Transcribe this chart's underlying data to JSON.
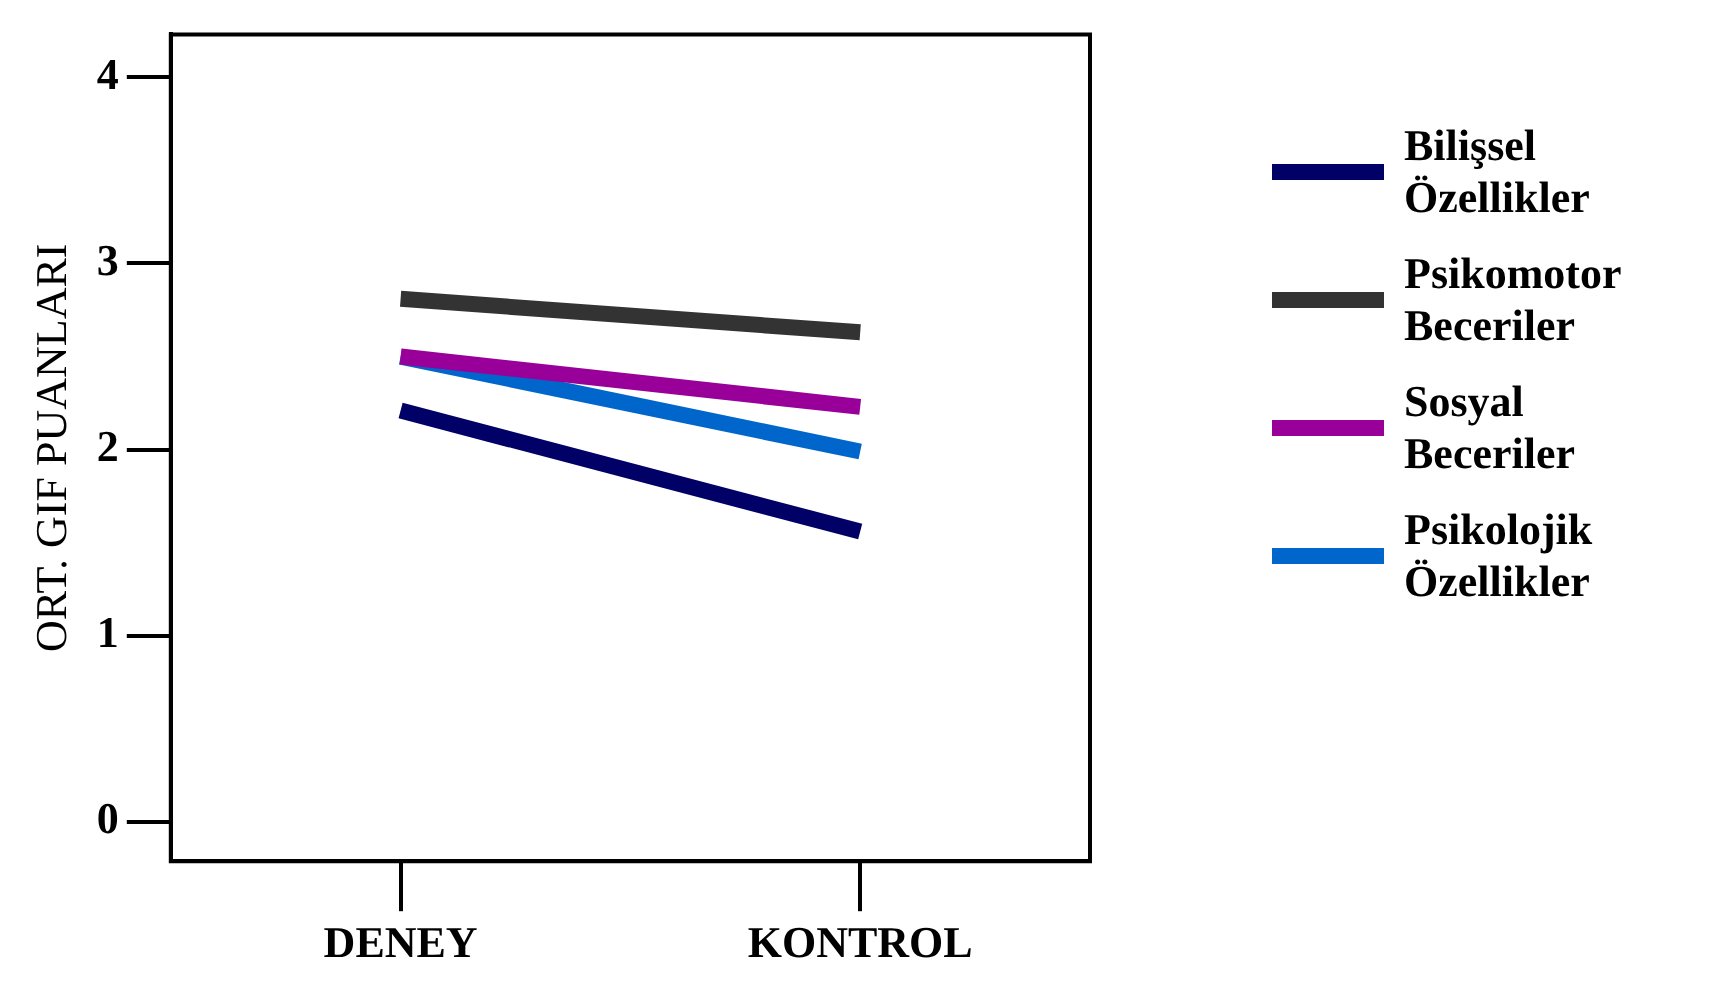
{
  "chart_data": {
    "type": "line",
    "ylabel": "ORT. GIF PUANLARI",
    "categories": [
      "DENEY",
      "KONTROL"
    ],
    "series": [
      {
        "name": "Bilişsel Özellikler",
        "color": "#000066",
        "values": [
          2.21,
          1.56
        ]
      },
      {
        "name": "Psikomotor Beceriler",
        "color": "#333333",
        "values": [
          2.81,
          2.63
        ]
      },
      {
        "name": "Sosyal Beceriler",
        "color": "#990099",
        "values": [
          2.5,
          2.23
        ]
      },
      {
        "name": "Psikolojik Özellikler",
        "color": "#0066cc",
        "values": [
          2.5,
          1.99
        ]
      }
    ],
    "ylim": [
      -0.21,
      4.23
    ],
    "yticks": [
      0,
      1,
      2,
      3,
      4
    ],
    "grid": false,
    "legend": "right",
    "marker": "none",
    "line_style": "solid"
  }
}
